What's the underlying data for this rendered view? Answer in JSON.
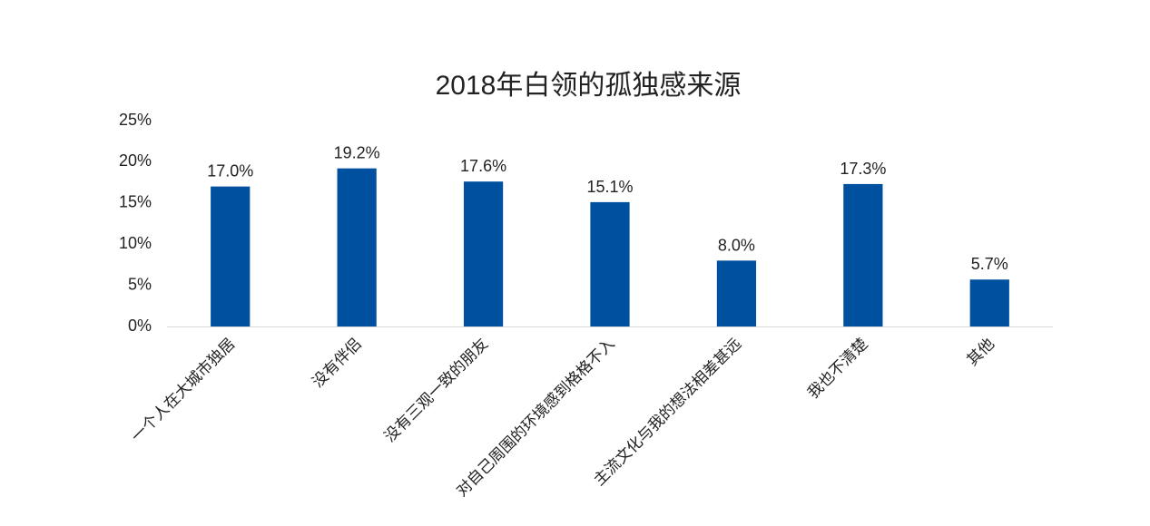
{
  "chart_data": {
    "type": "bar",
    "title": "2018年白领的孤独感来源",
    "categories": [
      "一个人在大城市独居",
      "没有伴侣",
      "没有三观一致的朋友",
      "对自己周围的环境感到格格不入",
      "主流文化与我的想法相差甚远",
      "我也不清楚",
      "其他"
    ],
    "values": [
      17.0,
      19.2,
      17.6,
      15.1,
      8.0,
      17.3,
      5.7
    ],
    "value_labels": [
      "17.0%",
      "19.2%",
      "17.6%",
      "15.1%",
      "8.0%",
      "17.3%",
      "5.7%"
    ],
    "color": "#0050a0",
    "ylim": [
      0,
      25
    ],
    "yticks": [
      {
        "value": 0,
        "label": "0%"
      },
      {
        "value": 5,
        "label": "5%"
      },
      {
        "value": 10,
        "label": "10%"
      },
      {
        "value": 15,
        "label": "15%"
      },
      {
        "value": 20,
        "label": "20%"
      },
      {
        "value": 25,
        "label": "25%"
      }
    ],
    "grid": false
  }
}
